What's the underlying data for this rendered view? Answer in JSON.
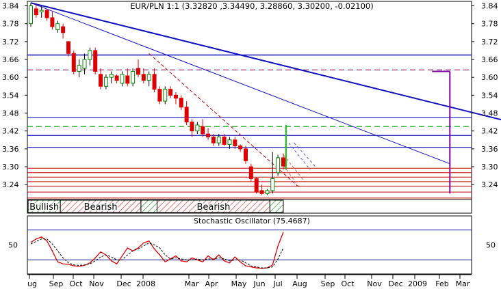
{
  "chart_data": {
    "type": "candlestick",
    "title": "EUR/PLN 1:1 (3.32820 ,3.34490, 3.28860, 3.30200, -0.02100)",
    "y_axis": {
      "ticks": [
        "3.84",
        "3.78",
        "3.72",
        "3.66",
        "3.60",
        "3.54",
        "3.48",
        "3.42",
        "3.36",
        "3.30",
        "3.24"
      ],
      "range": [
        3.19,
        3.855
      ]
    },
    "x_axis": {
      "ticks": [
        "ug",
        "Sep",
        "Oct",
        "Nov",
        "Dec",
        "2008",
        "Mar",
        "Apr",
        "May",
        "Jun",
        "Jul",
        "Aug",
        "Sep",
        "Oct",
        "Nov",
        "Dec",
        "2009",
        "Feb",
        "Mar"
      ]
    },
    "candles": [
      {
        "o": 3.78,
        "h": 3.85,
        "l": 3.77,
        "c": 3.84
      },
      {
        "o": 3.83,
        "h": 3.845,
        "l": 3.8,
        "c": 3.81
      },
      {
        "o": 3.82,
        "h": 3.84,
        "l": 3.8,
        "c": 3.825
      },
      {
        "o": 3.825,
        "h": 3.83,
        "l": 3.79,
        "c": 3.8
      },
      {
        "o": 3.8,
        "h": 3.82,
        "l": 3.76,
        "c": 3.77
      },
      {
        "o": 3.76,
        "h": 3.79,
        "l": 3.75,
        "c": 3.78
      },
      {
        "o": 3.77,
        "h": 3.78,
        "l": 3.73,
        "c": 3.75
      },
      {
        "o": 3.72,
        "h": 3.72,
        "l": 3.67,
        "c": 3.68
      },
      {
        "o": 3.68,
        "h": 3.69,
        "l": 3.61,
        "c": 3.62
      },
      {
        "o": 3.62,
        "h": 3.66,
        "l": 3.6,
        "c": 3.64
      },
      {
        "o": 3.63,
        "h": 3.68,
        "l": 3.61,
        "c": 3.66
      },
      {
        "o": 3.66,
        "h": 3.7,
        "l": 3.64,
        "c": 3.69
      },
      {
        "o": 3.69,
        "h": 3.7,
        "l": 3.61,
        "c": 3.62
      },
      {
        "o": 3.61,
        "h": 3.63,
        "l": 3.56,
        "c": 3.57
      },
      {
        "o": 3.57,
        "h": 3.61,
        "l": 3.56,
        "c": 3.6
      },
      {
        "o": 3.6,
        "h": 3.62,
        "l": 3.58,
        "c": 3.61
      },
      {
        "o": 3.605,
        "h": 3.61,
        "l": 3.58,
        "c": 3.59
      },
      {
        "o": 3.58,
        "h": 3.62,
        "l": 3.57,
        "c": 3.61
      },
      {
        "o": 3.605,
        "h": 3.63,
        "l": 3.57,
        "c": 3.58
      },
      {
        "o": 3.58,
        "h": 3.63,
        "l": 3.57,
        "c": 3.62
      },
      {
        "o": 3.63,
        "h": 3.66,
        "l": 3.6,
        "c": 3.61
      },
      {
        "o": 3.61,
        "h": 3.63,
        "l": 3.58,
        "c": 3.59
      },
      {
        "o": 3.59,
        "h": 3.62,
        "l": 3.57,
        "c": 3.61
      },
      {
        "o": 3.61,
        "h": 3.63,
        "l": 3.55,
        "c": 3.56
      },
      {
        "o": 3.56,
        "h": 3.57,
        "l": 3.51,
        "c": 3.52
      },
      {
        "o": 3.52,
        "h": 3.57,
        "l": 3.51,
        "c": 3.56
      },
      {
        "o": 3.56,
        "h": 3.57,
        "l": 3.53,
        "c": 3.54
      },
      {
        "o": 3.54,
        "h": 3.55,
        "l": 3.51,
        "c": 3.53
      },
      {
        "o": 3.53,
        "h": 3.54,
        "l": 3.49,
        "c": 3.5
      },
      {
        "o": 3.5,
        "h": 3.52,
        "l": 3.44,
        "c": 3.45
      },
      {
        "o": 3.45,
        "h": 3.46,
        "l": 3.4,
        "c": 3.42
      },
      {
        "o": 3.42,
        "h": 3.45,
        "l": 3.41,
        "c": 3.44
      },
      {
        "o": 3.435,
        "h": 3.46,
        "l": 3.4,
        "c": 3.41
      },
      {
        "o": 3.41,
        "h": 3.43,
        "l": 3.39,
        "c": 3.4
      },
      {
        "o": 3.4,
        "h": 3.41,
        "l": 3.37,
        "c": 3.38
      },
      {
        "o": 3.38,
        "h": 3.41,
        "l": 3.37,
        "c": 3.4
      },
      {
        "o": 3.4,
        "h": 3.41,
        "l": 3.37,
        "c": 3.375
      },
      {
        "o": 3.375,
        "h": 3.4,
        "l": 3.36,
        "c": 3.39
      },
      {
        "o": 3.39,
        "h": 3.4,
        "l": 3.36,
        "c": 3.37
      },
      {
        "o": 3.37,
        "h": 3.375,
        "l": 3.35,
        "c": 3.36
      },
      {
        "o": 3.36,
        "h": 3.37,
        "l": 3.31,
        "c": 3.32
      },
      {
        "o": 3.3,
        "h": 3.31,
        "l": 3.25,
        "c": 3.26
      },
      {
        "o": 3.26,
        "h": 3.265,
        "l": 3.21,
        "c": 3.215
      },
      {
        "o": 3.22,
        "h": 3.24,
        "l": 3.205,
        "c": 3.21
      },
      {
        "o": 3.21,
        "h": 3.225,
        "l": 3.205,
        "c": 3.22
      },
      {
        "o": 3.22,
        "h": 3.35,
        "l": 3.21,
        "c": 3.26
      },
      {
        "o": 3.28,
        "h": 3.34,
        "l": 3.27,
        "c": 3.33
      },
      {
        "o": 3.33,
        "h": 3.345,
        "l": 3.29,
        "c": 3.302
      }
    ],
    "colors": {
      "up": "#00bb00",
      "down": "#dd0000",
      "trend": "#1010c0",
      "fib": "#c00000",
      "purple": "#8000a0",
      "green_line": "#00cc00",
      "dashed_purple": "#800060",
      "dashed_green": "#00aa00"
    },
    "h_lines_blue": [
      3.675,
      3.465,
      3.405,
      3.365
    ],
    "h_lines_red": [
      3.295,
      3.28,
      3.265,
      3.25,
      3.235,
      3.215,
      3.195
    ],
    "h_line_dashed_purple": 3.625,
    "h_line_dashed_green": 3.435,
    "trend_lines": [
      {
        "x1": 0,
        "y1": 3.85,
        "x2": 96,
        "y2": 3.42
      },
      {
        "x1": 0,
        "y1": 3.85,
        "x2": 78,
        "y2": 3.31
      }
    ],
    "projection_bar": {
      "x": 78,
      "y_top": 3.62,
      "y_bottom": 3.21
    },
    "recent_green_spike": {
      "x": 47.5,
      "y_top": 3.44,
      "y_bottom": 3.29
    },
    "trend_bands": [
      {
        "label": "Bullish",
        "from": 0,
        "to": 6,
        "pattern": "green"
      },
      {
        "label": "Bearish",
        "from": 6,
        "to": 21,
        "pattern": "red"
      },
      {
        "label": "",
        "from": 21,
        "to": 24,
        "pattern": "green"
      },
      {
        "label": "Bearish",
        "from": 24,
        "to": 45,
        "pattern": "red"
      },
      {
        "label": "",
        "from": 45,
        "to": 47.5,
        "pattern": "green"
      }
    ],
    "stochastic": {
      "title": "Stochastic Oscillator (75.4687)",
      "tick_label": "50",
      "k": [
        55,
        62,
        66,
        58,
        38,
        16,
        12,
        11,
        8,
        7,
        9,
        14,
        24,
        36,
        30,
        18,
        12,
        28,
        44,
        38,
        44,
        54,
        58,
        42,
        30,
        16,
        22,
        28,
        18,
        16,
        24,
        20,
        16,
        28,
        20,
        30,
        18,
        14,
        26,
        16,
        8,
        6,
        4,
        3,
        4,
        10,
        48,
        75.5
      ],
      "d": [
        52,
        57,
        62,
        62,
        52,
        38,
        24,
        14,
        10,
        9,
        10,
        12,
        18,
        26,
        30,
        26,
        20,
        20,
        30,
        38,
        42,
        48,
        54,
        50,
        44,
        30,
        22,
        24,
        22,
        20,
        20,
        22,
        20,
        22,
        22,
        24,
        22,
        18,
        20,
        20,
        14,
        8,
        6,
        4,
        4,
        6,
        22,
        44
      ]
    }
  }
}
